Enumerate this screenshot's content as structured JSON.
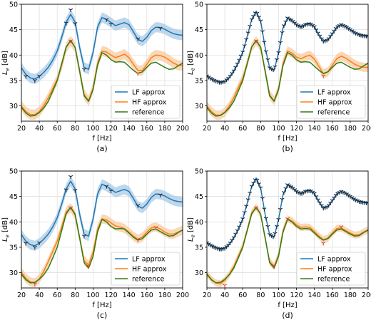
{
  "colors": {
    "lf": "#1f77b4",
    "lf_band": "#a9c9e6",
    "hf": "#ff7f0e",
    "hf_band": "#f7c9a2",
    "ref": "#2e7d14",
    "marker_dark": "#1b2a3a",
    "marker_red": "#d6482d"
  },
  "chart_data": [
    {
      "panel": "(a)",
      "type": "line",
      "xlabel": "f [Hz]",
      "ylabel": "L_e [dB]",
      "xlim": [
        20,
        200
      ],
      "ylim": [
        27,
        50
      ],
      "xticks": [
        "20",
        "40",
        "60",
        "80",
        "100",
        "120",
        "140",
        "160",
        "180",
        "200"
      ],
      "yticks": [
        "30",
        "35",
        "40",
        "45",
        "50"
      ],
      "legend": {
        "position": "lower-right",
        "entries": [
          "LF approx",
          "HF approx",
          "reference"
        ]
      },
      "x": [
        20,
        25,
        30,
        35,
        40,
        45,
        50,
        55,
        60,
        65,
        70,
        75,
        80,
        85,
        90,
        95,
        100,
        105,
        110,
        115,
        120,
        125,
        130,
        135,
        140,
        145,
        150,
        155,
        160,
        165,
        170,
        175,
        180,
        185,
        190,
        195,
        200
      ],
      "series": [
        {
          "name": "LF approx",
          "band": 1.0,
          "values": [
            37.5,
            36.2,
            35.5,
            35.3,
            35.8,
            36.6,
            37.6,
            39.0,
            40.8,
            43.5,
            46.5,
            48.0,
            46.5,
            41.5,
            37.6,
            37.2,
            40.5,
            45.5,
            47.4,
            47.0,
            46.4,
            45.8,
            46.1,
            46.4,
            46.0,
            44.6,
            43.1,
            42.7,
            43.5,
            44.8,
            45.5,
            45.4,
            45.1,
            44.6,
            44.2,
            44.0,
            43.9
          ]
        },
        {
          "name": "HF approx",
          "band": 1.0,
          "values": [
            30.0,
            28.9,
            28.3,
            28.3,
            28.9,
            30.1,
            31.6,
            33.4,
            35.2,
            38.0,
            41.5,
            42.8,
            41.5,
            36.8,
            32.3,
            31.0,
            33.5,
            38.4,
            40.8,
            40.6,
            40.0,
            39.5,
            39.8,
            40.2,
            39.5,
            38.2,
            37.0,
            37.0,
            38.2,
            39.5,
            40.0,
            39.9,
            39.6,
            39.0,
            38.4,
            38.0,
            37.9
          ]
        },
        {
          "name": "reference",
          "values": [
            29.7,
            28.6,
            28.0,
            28.1,
            28.7,
            29.6,
            30.9,
            32.9,
            35.0,
            38.3,
            41.6,
            42.9,
            41.5,
            36.9,
            32.0,
            30.9,
            33.2,
            38.0,
            40.5,
            40.0,
            39.1,
            38.6,
            38.7,
            38.6,
            37.8,
            37.0,
            36.4,
            36.7,
            37.6,
            38.4,
            38.6,
            38.1,
            37.6,
            37.2,
            37.3,
            37.9,
            38.4
          ]
        }
      ],
      "markers_lf": {
        "x": [
          25,
          35,
          40,
          70,
          75,
          80,
          90,
          115,
          120,
          150,
          175
        ],
        "y": [
          35.8,
          35.0,
          35.9,
          46.3,
          48.9,
          46.2,
          37.2,
          47.0,
          46.1,
          43.2,
          45.3
        ]
      },
      "markers_hf": {
        "x": [
          75,
          150
        ],
        "y": [
          42.8,
          36.4
        ]
      }
    },
    {
      "panel": "(b)",
      "type": "line",
      "xlabel": "f [Hz]",
      "ylabel": "L_e [dB]",
      "xlim": [
        20,
        200
      ],
      "ylim": [
        27,
        50
      ],
      "xticks": [
        "20",
        "40",
        "60",
        "80",
        "100",
        "120",
        "140",
        "160",
        "180",
        "200"
      ],
      "yticks": [
        "30",
        "35",
        "40",
        "45",
        "50"
      ],
      "legend": {
        "position": "lower-right",
        "entries": [
          "LF approx",
          "HF approx",
          "reference"
        ]
      },
      "x": [
        20,
        25,
        30,
        35,
        40,
        45,
        50,
        55,
        60,
        65,
        70,
        75,
        80,
        85,
        90,
        95,
        100,
        105,
        110,
        115,
        120,
        125,
        130,
        135,
        140,
        145,
        150,
        155,
        160,
        165,
        170,
        175,
        180,
        185,
        190,
        195,
        200
      ],
      "series": [
        {
          "name": "LF approx",
          "band": 0.35,
          "values": [
            35.9,
            35.3,
            34.9,
            34.6,
            34.8,
            35.6,
            36.9,
            38.6,
            40.6,
            43.7,
            47.0,
            48.6,
            46.7,
            41.5,
            37.5,
            37.0,
            40.5,
            45.4,
            47.3,
            46.8,
            46.0,
            45.5,
            46.0,
            46.2,
            45.6,
            44.0,
            42.7,
            43.0,
            44.2,
            45.5,
            46.0,
            45.6,
            45.0,
            44.4,
            44.0,
            43.8,
            43.7
          ]
        },
        {
          "name": "HF approx",
          "band": 0.9,
          "values": [
            30.0,
            28.9,
            28.2,
            28.2,
            28.8,
            30.0,
            31.6,
            33.6,
            35.4,
            38.4,
            41.6,
            42.8,
            41.6,
            36.8,
            32.2,
            31.0,
            33.4,
            38.4,
            40.8,
            40.4,
            39.6,
            39.3,
            39.7,
            40.0,
            39.2,
            37.8,
            36.3,
            36.7,
            38.0,
            39.3,
            39.8,
            39.4,
            38.8,
            38.2,
            37.8,
            37.6,
            37.6
          ]
        },
        {
          "name": "reference",
          "values": [
            29.7,
            28.6,
            28.0,
            28.1,
            28.7,
            29.6,
            30.9,
            32.9,
            35.0,
            38.3,
            41.6,
            42.9,
            41.5,
            36.9,
            32.0,
            30.9,
            33.2,
            38.0,
            40.5,
            40.0,
            39.1,
            38.6,
            38.7,
            38.6,
            37.8,
            37.0,
            36.4,
            36.7,
            37.6,
            38.4,
            38.6,
            38.1,
            37.6,
            37.2,
            37.3,
            37.9,
            38.4
          ]
        }
      ],
      "markers_lf_dense": true,
      "markers_hf": {
        "x": [
          75,
          150
        ],
        "y": [
          42.8,
          35.9
        ]
      }
    },
    {
      "panel": "(c)",
      "type": "line",
      "xlabel": "f [Hz]",
      "ylabel": "L_e [dB]",
      "xlim": [
        20,
        200
      ],
      "ylim": [
        27,
        50
      ],
      "xticks": [
        "20",
        "40",
        "60",
        "80",
        "100",
        "120",
        "140",
        "160",
        "180",
        "200"
      ],
      "yticks": [
        "30",
        "35",
        "40",
        "45",
        "50"
      ],
      "legend": {
        "position": "lower-right",
        "entries": [
          "LF approx",
          "HF approx",
          "reference"
        ]
      },
      "x": [
        20,
        25,
        30,
        35,
        40,
        45,
        50,
        55,
        60,
        65,
        70,
        75,
        80,
        85,
        90,
        95,
        100,
        105,
        110,
        115,
        120,
        125,
        130,
        135,
        140,
        145,
        150,
        155,
        160,
        165,
        170,
        175,
        180,
        185,
        190,
        195,
        200
      ],
      "series": [
        {
          "name": "LF approx",
          "band": 1.0,
          "values": [
            37.5,
            36.2,
            35.5,
            35.3,
            35.8,
            36.6,
            37.6,
            39.0,
            40.8,
            43.5,
            46.5,
            48.0,
            46.5,
            41.5,
            37.6,
            37.2,
            40.5,
            45.5,
            47.4,
            47.0,
            46.4,
            45.8,
            46.1,
            46.4,
            46.0,
            44.6,
            43.1,
            42.7,
            43.5,
            44.8,
            45.5,
            45.4,
            45.1,
            44.6,
            44.2,
            44.0,
            43.9
          ]
        },
        {
          "name": "HF approx",
          "band": 0.9,
          "values": [
            30.1,
            28.9,
            28.2,
            28.0,
            28.8,
            30.3,
            32.2,
            34.2,
            36.2,
            39.0,
            42.0,
            42.8,
            41.3,
            36.8,
            32.4,
            31.5,
            34.0,
            38.6,
            40.6,
            40.4,
            39.8,
            39.2,
            39.0,
            38.7,
            38.0,
            37.2,
            36.6,
            37.0,
            38.0,
            38.8,
            39.0,
            38.6,
            38.0,
            37.6,
            37.6,
            38.0,
            38.4
          ]
        },
        {
          "name": "reference",
          "values": [
            29.7,
            28.6,
            28.0,
            28.1,
            28.7,
            29.6,
            30.9,
            32.9,
            35.0,
            38.3,
            41.6,
            42.9,
            41.5,
            36.9,
            32.0,
            30.9,
            33.2,
            38.0,
            40.5,
            40.0,
            39.1,
            38.6,
            38.7,
            38.6,
            37.8,
            37.0,
            36.4,
            36.7,
            37.6,
            38.4,
            38.6,
            38.1,
            37.6,
            37.2,
            37.3,
            37.9,
            38.4
          ]
        }
      ],
      "markers_lf": {
        "x": [
          25,
          35,
          40,
          70,
          75,
          80,
          90,
          115,
          120,
          150,
          175
        ],
        "y": [
          35.8,
          35.0,
          35.9,
          46.3,
          48.9,
          46.2,
          37.2,
          47.0,
          46.1,
          43.2,
          45.3
        ]
      },
      "markers_hf": {
        "x": [
          35,
          75,
          95,
          150,
          170
        ],
        "y": [
          27.8,
          42.8,
          31.3,
          36.5,
          38.9
        ]
      }
    },
    {
      "panel": "(d)",
      "type": "line",
      "xlabel": "f [Hz]",
      "ylabel": "L_e [dB]",
      "xlim": [
        20,
        200
      ],
      "ylim": [
        27,
        50
      ],
      "xticks": [
        "20",
        "40",
        "60",
        "80",
        "100",
        "120",
        "140",
        "160",
        "180",
        "200"
      ],
      "yticks": [
        "30",
        "35",
        "40",
        "45",
        "50"
      ],
      "legend": {
        "position": "lower-right",
        "entries": [
          "LF approx",
          "HF approx",
          "reference"
        ]
      },
      "x": [
        20,
        25,
        30,
        35,
        40,
        45,
        50,
        55,
        60,
        65,
        70,
        75,
        80,
        85,
        90,
        95,
        100,
        105,
        110,
        115,
        120,
        125,
        130,
        135,
        140,
        145,
        150,
        155,
        160,
        165,
        170,
        175,
        180,
        185,
        190,
        195,
        200
      ],
      "series": [
        {
          "name": "LF approx",
          "band": 0.35,
          "values": [
            35.9,
            35.3,
            34.9,
            34.6,
            34.8,
            35.6,
            36.9,
            38.6,
            40.6,
            43.7,
            47.0,
            48.6,
            46.7,
            41.5,
            37.5,
            37.0,
            40.5,
            45.4,
            47.3,
            46.8,
            46.0,
            45.5,
            46.0,
            46.2,
            45.6,
            44.0,
            42.7,
            43.0,
            44.2,
            45.5,
            46.0,
            45.6,
            45.0,
            44.4,
            44.0,
            43.8,
            43.7
          ]
        },
        {
          "name": "HF approx",
          "band": 0.7,
          "values": [
            29.8,
            28.7,
            28.0,
            27.8,
            28.5,
            29.7,
            31.2,
            33.2,
            35.2,
            38.4,
            41.8,
            42.9,
            41.5,
            36.8,
            32.2,
            31.2,
            33.5,
            38.3,
            40.6,
            40.2,
            39.4,
            38.9,
            39.0,
            38.9,
            38.1,
            37.2,
            36.5,
            36.8,
            37.8,
            38.7,
            38.8,
            38.3,
            37.8,
            37.4,
            37.5,
            38.0,
            38.4
          ]
        },
        {
          "name": "reference",
          "values": [
            29.7,
            28.6,
            28.0,
            28.1,
            28.7,
            29.6,
            30.9,
            32.9,
            35.0,
            38.3,
            41.6,
            42.9,
            41.5,
            36.9,
            32.0,
            30.9,
            33.2,
            38.0,
            40.5,
            40.0,
            39.1,
            38.6,
            38.7,
            38.6,
            37.8,
            37.0,
            36.4,
            36.7,
            37.6,
            38.4,
            38.6,
            38.1,
            37.6,
            37.2,
            37.3,
            37.9,
            38.4
          ]
        }
      ],
      "markers_lf_dense": true,
      "markers_hf": {
        "x": [
          40,
          75,
          95,
          110,
          150,
          170
        ],
        "y": [
          27.5,
          42.8,
          31.4,
          40.6,
          35.8,
          39.0
        ]
      }
    }
  ]
}
